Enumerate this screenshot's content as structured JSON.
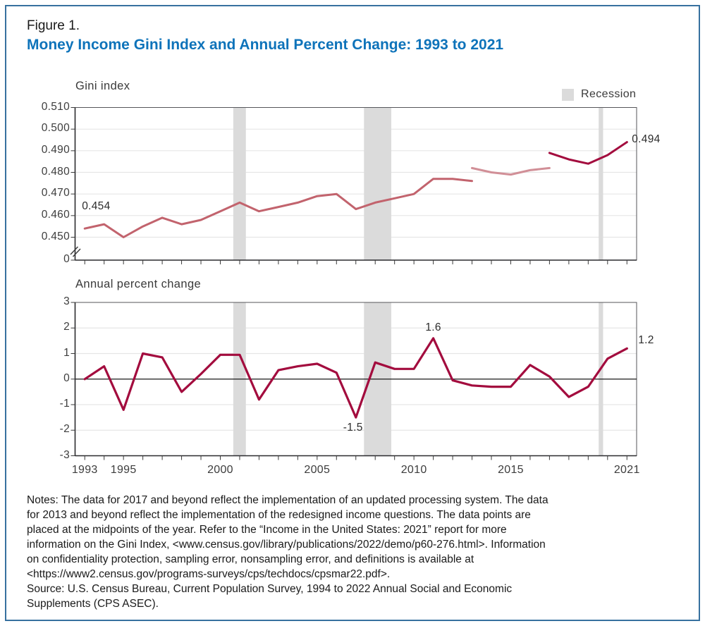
{
  "figure": {
    "label": "Figure 1.",
    "title": "Money Income Gini Index and Annual Percent Change: 1993 to 2021"
  },
  "legend": {
    "recession_label": "Recession"
  },
  "colors": {
    "title_blue": "#0E73BA",
    "frame_blue": "#37719F",
    "line_dark": "#A30C3E",
    "line_mid": "#C2636D",
    "line_light": "#D18F97",
    "recession_band": "#DBDBDB",
    "gridline": "#E6E6E6",
    "box_border": "#55565A",
    "axis_dark": "#2B2B2E",
    "zero_line": "#1A1A1A"
  },
  "recessions": [
    {
      "from": 2001.17,
      "to": 2001.82
    },
    {
      "from": 2007.92,
      "to": 2009.33
    },
    {
      "from": 2020.04,
      "to": 2020.27
    }
  ],
  "chart_data": [
    {
      "type": "line",
      "title": "Gini index",
      "ylim": [
        0.45,
        0.51
      ],
      "axis_break_to_zero": true,
      "ytick_labels": [
        "0.510",
        "0.500",
        "0.490",
        "0.480",
        "0.470",
        "0.460",
        "0.450",
        "0"
      ],
      "x_range": [
        1993,
        2021
      ],
      "grid": true,
      "legend_position": "top-right",
      "series": [
        {
          "name": "1993–2013",
          "color_key": "line_mid",
          "start_year": 1993,
          "values": [
            0.454,
            0.456,
            0.45,
            0.455,
            0.459,
            0.456,
            0.458,
            0.462,
            0.466,
            0.462,
            0.464,
            0.466,
            0.469,
            0.47,
            0.463,
            0.466,
            0.468,
            0.47,
            0.477,
            0.477,
            0.476
          ]
        },
        {
          "name": "2013–2017",
          "color_key": "line_light",
          "start_year": 2013,
          "values": [
            0.482,
            0.48,
            0.479,
            0.481,
            0.482
          ]
        },
        {
          "name": "2017–2021",
          "color_key": "line_dark",
          "start_year": 2017,
          "values": [
            0.489,
            0.486,
            0.484,
            0.488,
            0.494
          ]
        }
      ],
      "annotations": [
        {
          "text": "0.454",
          "year": 1993,
          "value": 0.454
        },
        {
          "text": "0.494",
          "year": 2021,
          "value": 0.494
        }
      ]
    },
    {
      "type": "line",
      "title": "Annual percent change",
      "ylim": [
        -3,
        3
      ],
      "ytick_labels": [
        "3",
        "2",
        "1",
        "0",
        "-1",
        "-2",
        "-3"
      ],
      "x_range": [
        1993,
        2021
      ],
      "grid": true,
      "color_key": "line_dark",
      "start_year": 1993,
      "values": [
        0.0,
        0.5,
        -1.2,
        1.0,
        0.85,
        -0.5,
        0.2,
        0.95,
        0.95,
        -0.8,
        0.35,
        0.5,
        0.6,
        0.25,
        -1.5,
        0.65,
        0.4,
        0.4,
        1.6,
        -0.05,
        -0.25,
        -0.3,
        -0.3,
        0.55,
        0.1,
        -0.7,
        -0.3,
        0.8,
        1.2
      ],
      "xtick_labels": [
        {
          "label": "1993",
          "year": 1993
        },
        {
          "label": "1995",
          "year": 1995
        },
        {
          "label": "2000",
          "year": 2000
        },
        {
          "label": "2005",
          "year": 2005
        },
        {
          "label": "2010",
          "year": 2010
        },
        {
          "label": "2015",
          "year": 2015
        },
        {
          "label": "2021",
          "year": 2021
        }
      ],
      "annotations": [
        {
          "text": "1.6",
          "year": 2011,
          "value": 1.6
        },
        {
          "text": "-1.5",
          "year": 2007,
          "value": -1.5
        },
        {
          "text": "1.2",
          "year": 2021,
          "value": 1.2
        }
      ]
    }
  ],
  "notes": {
    "lines": [
      "Notes: The data for 2017 and beyond reflect the implementation of an updated processing system. The data",
      "for 2013 and beyond reflect the implementation of the redesigned income questions. The data points are",
      "placed at the midpoints of the year. Refer to the “Income in the United States: 2021” report for more",
      "information on the Gini Index, <www.census.gov/library/publications/2022/demo/p60-276.html>. Information",
      "on confidentiality protection, sampling error, nonsampling error, and definitions is available at",
      "<https://www2.census.gov/programs-surveys/cps/techdocs/cpsmar22.pdf>."
    ]
  },
  "source": {
    "lines": [
      "Source: U.S. Census Bureau, Current Population Survey, 1994 to 2022 Annual Social and Economic",
      "Supplements (CPS ASEC)."
    ]
  }
}
